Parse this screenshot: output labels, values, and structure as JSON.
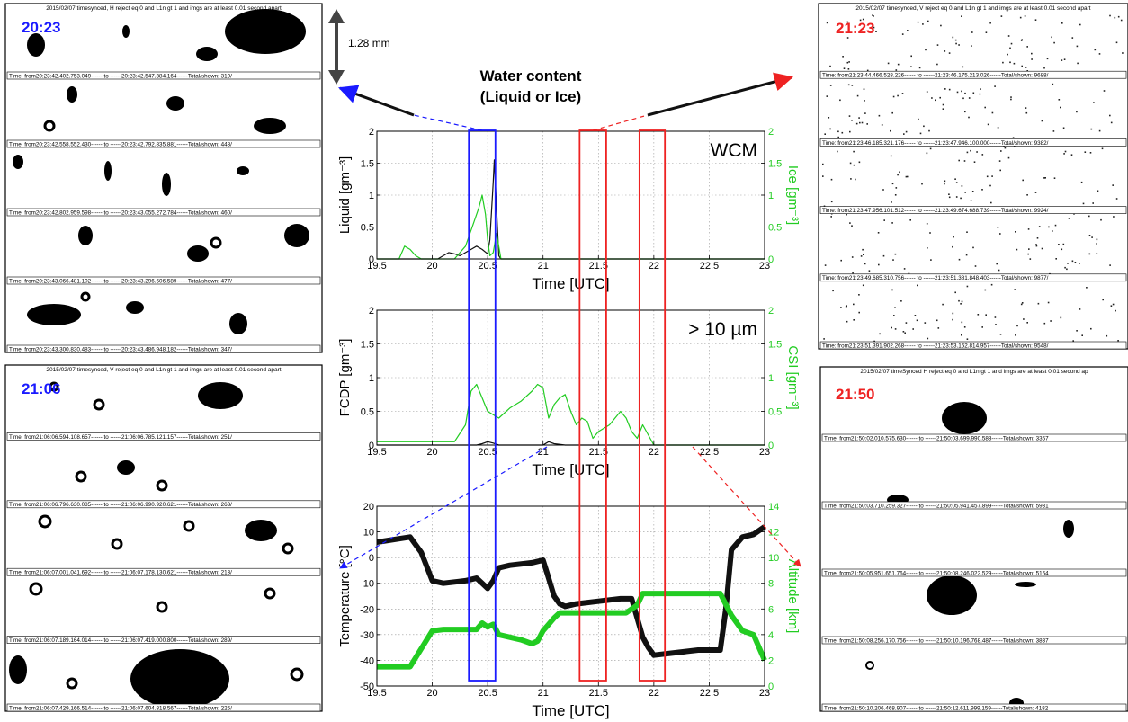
{
  "title_lines": [
    "Water content",
    "(Liquid or Ice)"
  ],
  "scale": "1.28 mm",
  "tick_labels": {
    "time": [
      "19.5",
      "20",
      "20.5",
      "21",
      "21.5",
      "22",
      "22.5",
      "23"
    ],
    "panel1_left": [
      "0",
      "0.5",
      "1",
      "1.5",
      "2"
    ],
    "panel1_right": [
      "0",
      "0.5",
      "1",
      "1.5",
      "2"
    ],
    "panel2_left": [
      "0",
      "0.5",
      "1",
      "1.5",
      "2"
    ],
    "panel2_right": [
      "0",
      "0.5",
      "1",
      "1.5",
      "2"
    ],
    "panel3_left": [
      "-50",
      "-40",
      "-30",
      "-20",
      "-10",
      "0",
      "10",
      "20"
    ],
    "panel3_right": [
      "0",
      "2",
      "4",
      "6",
      "8",
      "10",
      "12",
      "14"
    ]
  },
  "colors": {
    "blue": "#1a1aff",
    "red": "#ee2222",
    "green": "#22cc22",
    "black": "#111111"
  },
  "chart_data": [
    {
      "type": "line",
      "annotation": "WCM",
      "xlabel": "Time [UTC]",
      "ylabel": "Liquid [gm⁻³]",
      "y2label": "Ice [gm⁻³]",
      "xlim": [
        19.5,
        23
      ],
      "ylim": [
        0,
        2
      ],
      "y2lim": [
        0,
        2
      ],
      "series": [
        {
          "name": "Liquid",
          "color": "black",
          "x": [
            19.5,
            20.05,
            20.1,
            20.15,
            20.2,
            20.25,
            20.3,
            20.35,
            20.4,
            20.45,
            20.5,
            20.52,
            20.55,
            20.56,
            20.58,
            20.6,
            20.62,
            23
          ],
          "y": [
            0,
            0,
            0.05,
            0.1,
            0.08,
            0.05,
            0.1,
            0.15,
            0.2,
            0.15,
            0.08,
            0.3,
            1.2,
            1.55,
            0.8,
            0.05,
            0,
            0
          ]
        },
        {
          "name": "Ice",
          "color": "green",
          "x": [
            19.5,
            19.7,
            19.75,
            19.8,
            19.85,
            19.9,
            20.0,
            20.1,
            20.2,
            20.3,
            20.35,
            20.38,
            20.42,
            20.45,
            20.48,
            20.5,
            20.52,
            20.55,
            20.58,
            20.6,
            20.62,
            23
          ],
          "y": [
            0,
            0,
            0.2,
            0.15,
            0.05,
            0,
            0,
            0,
            0,
            0.2,
            0.45,
            0.6,
            0.8,
            1.0,
            0.7,
            0.3,
            0.05,
            0.1,
            0.4,
            0.2,
            0,
            0
          ]
        }
      ]
    },
    {
      "type": "line",
      "annotation": "> 10 µm",
      "xlabel": "Time [UTC]",
      "ylabel": "FCDP [gm⁻³]",
      "y2label": "CSI [gm⁻³]",
      "xlim": [
        19.5,
        23
      ],
      "ylim": [
        0,
        2
      ],
      "y2lim": [
        0,
        2
      ],
      "series": [
        {
          "name": "FCDP",
          "color": "black",
          "x": [
            19.5,
            20.4,
            20.45,
            20.5,
            20.55,
            20.6,
            21.0,
            21.05,
            21.1,
            21.2,
            23
          ],
          "y": [
            0,
            0,
            0.02,
            0.05,
            0.03,
            0,
            0,
            0.05,
            0.02,
            0,
            0
          ],
          "markers": true
        },
        {
          "name": "CSI",
          "color": "green",
          "x": [
            19.5,
            19.7,
            19.9,
            20.2,
            20.3,
            20.35,
            20.4,
            20.45,
            20.5,
            20.55,
            20.6,
            20.7,
            20.8,
            20.9,
            20.95,
            21.0,
            21.05,
            21.1,
            21.15,
            21.2,
            21.25,
            21.3,
            21.35,
            21.4,
            21.45,
            21.5,
            21.6,
            21.7,
            21.75,
            21.8,
            21.85,
            21.9,
            22.0,
            23
          ],
          "y": [
            0.05,
            0.05,
            0.05,
            0.05,
            0.3,
            0.8,
            0.9,
            0.7,
            0.5,
            0.45,
            0.4,
            0.55,
            0.65,
            0.8,
            0.9,
            0.85,
            0.4,
            0.6,
            0.7,
            0.75,
            0.5,
            0.3,
            0.4,
            0.35,
            0.1,
            0.2,
            0.3,
            0.5,
            0.4,
            0.2,
            0.1,
            0.3,
            0,
            0
          ]
        }
      ]
    },
    {
      "type": "line",
      "xlabel": "Time [UTC]",
      "ylabel": "Temperature [°C]",
      "y2label": "Altitude [km]",
      "xlim": [
        19.5,
        23
      ],
      "ylim": [
        -50,
        20
      ],
      "y2lim": [
        0,
        14
      ],
      "series": [
        {
          "name": "Temperature",
          "color": "black",
          "x": [
            19.5,
            19.8,
            19.9,
            20.0,
            20.1,
            20.3,
            20.4,
            20.45,
            20.5,
            20.55,
            20.6,
            20.7,
            20.9,
            21.0,
            21.05,
            21.1,
            21.15,
            21.2,
            21.3,
            21.5,
            21.7,
            21.8,
            21.9,
            21.95,
            22.0,
            22.2,
            22.4,
            22.6,
            22.65,
            22.7,
            22.8,
            22.9,
            23
          ],
          "y": [
            6,
            8,
            2,
            -9,
            -10,
            -9,
            -8,
            -10,
            -12,
            -9,
            -4,
            -3,
            -2,
            -1,
            -8,
            -15,
            -18,
            -19,
            -18,
            -17,
            -16,
            -16,
            -31,
            -35,
            -38,
            -37,
            -36,
            -36,
            -20,
            3,
            8,
            9,
            12
          ]
        },
        {
          "name": "Altitude",
          "color": "green",
          "x": [
            19.5,
            19.8,
            20.0,
            20.1,
            20.4,
            20.45,
            20.5,
            20.55,
            20.6,
            20.8,
            20.9,
            20.95,
            21.0,
            21.05,
            21.1,
            21.15,
            21.2,
            21.75,
            21.8,
            21.85,
            21.9,
            22.6,
            22.7,
            22.8,
            22.9,
            22.95,
            23
          ],
          "y": [
            1.5,
            1.5,
            4.3,
            4.4,
            4.4,
            4.9,
            4.6,
            4.8,
            4.0,
            3.6,
            3.3,
            3.5,
            4.3,
            4.8,
            5.3,
            5.7,
            5.7,
            5.7,
            6.0,
            6.3,
            7.2,
            7.2,
            5.5,
            4.3,
            4.0,
            3.0,
            2.0
          ]
        }
      ]
    }
  ],
  "images": [
    {
      "label": "20:23",
      "label_color": "blue",
      "header": "2015/02/07 timesynced, H reject eq 0 and L1n gt 1 and imgs are at least 0.01 second apart",
      "type": "large",
      "strips": [
        "Time: from20:23:42.402.753.049------ to ------20:23:42.547.384.164------Total/shown:  319/",
        "Time: from20:23:42.558.552.430------ to ------20:23:42.792.835.881------Total/shown:  448/",
        "Time: from20:23:42.802.959.598------ to ------20:23:43.055.272.784------Total/shown:  460/",
        "Time: from20:23:43.066.481.102------ to ------20:23:43.296.606.589------Total/shown:  477/",
        "Time: from20:23:43.300.830.483------ to ------20:23:43.486.948.182------Total/shown:  347/"
      ]
    },
    {
      "label": "21:06",
      "label_color": "blue",
      "header": "2015/02/07 timesynced, V reject eq 0 and L1n gt 1 and imgs are at least 0.01 second apart",
      "type": "ring",
      "strips": [
        "Time: from21:06:06.594.108.657------ to ------21:06:06.785.121.157------Total/shown:  251/",
        "Time: from21:06:06.796.630.085------ to ------21:06:06.990.920.621------Total/shown:  263/",
        "Time: from21:06:07.001.041.692------ to ------21:06:07.178.130.621------Total/shown:  213/",
        "Time: from21:06:07.189.164.014------ to ------21:06:07.419.000.800------Total/shown:  289/",
        "Time: from21:06:07.429.166.514------ to ------21:06:07.604.818.567------Total/shown:  225/"
      ]
    },
    {
      "label": "21:23",
      "label_color": "red",
      "header": "2015/02/07 timesynced, V reject eq 0 and L1n gt 1 and imgs are at least 0.01 second apart",
      "type": "dots",
      "strips": [
        "Time: from21:23:44.466.528.226------ to ------21:23:46.175.213.026------Total/shown:  9688/",
        "Time: from21:23:46.185.321.176------ to ------21:23:47.946.100.000------Total/shown:  9382/",
        "Time: from21:23:47.956.101.512------ to ------21:23:49.674.688.739------Total/shown:  9924/",
        "Time: from21:23:49.685.310.756------ to ------21:23:51.381.848.403------Total/shown:  9877/",
        "Time: from21:23:51.391.902.268------ to ------21:23:53.162.814.957------Total/shown:  9548/"
      ]
    },
    {
      "label": "21:50",
      "label_color": "red",
      "header": "2015/02/07 timeSynced H reject eq 0 and L1n gt 1 and imgs are at least 0.01 second ap",
      "type": "sparse",
      "strips": [
        "Time: from21:50:02.010.575.630------ to ------21:50:03.699.990.588------Total/shown:  3357",
        "Time: from21:50:03.710.259.327------ to ------21:50:05.941.457.899------Total/shown:  5931",
        "Time: from21:50:05.951.651.764------ to ------21:50:08.246.022.529------Total/shown:  5164",
        "Time: from21:50:08.256.170.756------ to ------21:50:10.196.768.487------Total/shown:  3837",
        "Time: from21:50:10.206.468.907------ to ------21:50:12.611.999.159------Total/shown:  4182"
      ]
    }
  ]
}
